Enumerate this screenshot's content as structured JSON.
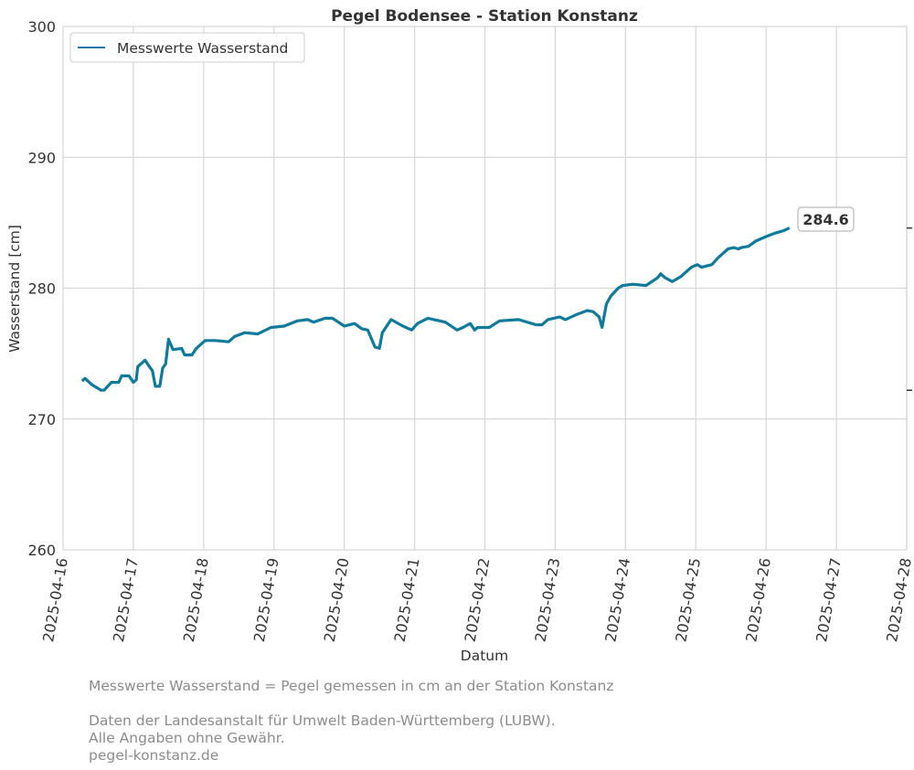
{
  "chart_data": {
    "type": "line",
    "title": "Pegel Bodensee - Station Konstanz",
    "xlabel": "Datum",
    "ylabel": "Wasserstand [cm]",
    "ylim": [
      260,
      300
    ],
    "yticks": [
      260,
      270,
      280,
      290,
      300
    ],
    "xlim": [
      "2025-04-16",
      "2025-04-28"
    ],
    "xticks": [
      "2025-04-16",
      "2025-04-17",
      "2025-04-18",
      "2025-04-19",
      "2025-04-20",
      "2025-04-21",
      "2025-04-22",
      "2025-04-23",
      "2025-04-24",
      "2025-04-25",
      "2025-04-26",
      "2025-04-27",
      "2025-04-28"
    ],
    "grid": true,
    "legend": {
      "placement": "top-left",
      "entries": [
        "Messwerte Wasserstand"
      ]
    },
    "last_value_label": "284.6",
    "right_axis_ticks": [
      284.6,
      272.2
    ],
    "series": [
      {
        "name": "Messwerte Wasserstand",
        "color": "#0f7a9c",
        "points": [
          [
            "2025-04-16T06:30",
            272.9
          ],
          [
            "2025-04-16T07:30",
            273.1
          ],
          [
            "2025-04-16T10:00",
            272.6
          ],
          [
            "2025-04-16T13:00",
            272.2
          ],
          [
            "2025-04-16T14:00",
            272.2
          ],
          [
            "2025-04-16T16:30",
            272.8
          ],
          [
            "2025-04-16T19:00",
            272.8
          ],
          [
            "2025-04-16T20:00",
            273.3
          ],
          [
            "2025-04-16T22:30",
            273.3
          ],
          [
            "2025-04-17T00:00",
            272.8
          ],
          [
            "2025-04-17T01:00",
            273.0
          ],
          [
            "2025-04-17T01:30",
            274.0
          ],
          [
            "2025-04-17T04:00",
            274.5
          ],
          [
            "2025-04-17T05:30",
            274.0
          ],
          [
            "2025-04-17T06:30",
            273.7
          ],
          [
            "2025-04-17T07:30",
            272.5
          ],
          [
            "2025-04-17T09:00",
            272.5
          ],
          [
            "2025-04-17T10:00",
            273.9
          ],
          [
            "2025-04-17T11:00",
            274.2
          ],
          [
            "2025-04-17T12:00",
            276.1
          ],
          [
            "2025-04-17T13:30",
            275.3
          ],
          [
            "2025-04-17T16:30",
            275.4
          ],
          [
            "2025-04-17T17:30",
            274.9
          ],
          [
            "2025-04-17T20:00",
            274.9
          ],
          [
            "2025-04-17T21:30",
            275.4
          ],
          [
            "2025-04-18T00:30",
            276.0
          ],
          [
            "2025-04-18T04:00",
            276.0
          ],
          [
            "2025-04-18T08:30",
            275.9
          ],
          [
            "2025-04-18T10:30",
            276.3
          ],
          [
            "2025-04-18T14:00",
            276.6
          ],
          [
            "2025-04-18T18:30",
            276.5
          ],
          [
            "2025-04-18T23:00",
            277.0
          ],
          [
            "2025-04-19T03:30",
            277.1
          ],
          [
            "2025-04-19T08:00",
            277.5
          ],
          [
            "2025-04-19T11:30",
            277.6
          ],
          [
            "2025-04-19T13:30",
            277.4
          ],
          [
            "2025-04-19T17:30",
            277.7
          ],
          [
            "2025-04-19T20:00",
            277.7
          ],
          [
            "2025-04-20T00:00",
            277.1
          ],
          [
            "2025-04-20T03:30",
            277.3
          ],
          [
            "2025-04-20T06:00",
            276.9
          ],
          [
            "2025-04-20T08:00",
            276.8
          ],
          [
            "2025-04-20T10:30",
            275.5
          ],
          [
            "2025-04-20T12:00",
            275.4
          ],
          [
            "2025-04-20T13:00",
            276.6
          ],
          [
            "2025-04-20T16:00",
            277.6
          ],
          [
            "2025-04-20T20:00",
            277.1
          ],
          [
            "2025-04-20T23:00",
            276.8
          ],
          [
            "2025-04-21T01:00",
            277.3
          ],
          [
            "2025-04-21T04:30",
            277.7
          ],
          [
            "2025-04-21T10:30",
            277.4
          ],
          [
            "2025-04-21T14:30",
            276.8
          ],
          [
            "2025-04-21T16:30",
            277.0
          ],
          [
            "2025-04-21T19:00",
            277.3
          ],
          [
            "2025-04-21T20:30",
            276.8
          ],
          [
            "2025-04-21T21:30",
            277.0
          ],
          [
            "2025-04-22T01:30",
            277.0
          ],
          [
            "2025-04-22T05:00",
            277.5
          ],
          [
            "2025-04-22T11:30",
            277.6
          ],
          [
            "2025-04-22T17:30",
            277.2
          ],
          [
            "2025-04-22T19:30",
            277.2
          ],
          [
            "2025-04-22T21:30",
            277.6
          ],
          [
            "2025-04-23T01:30",
            277.8
          ],
          [
            "2025-04-23T03:30",
            277.6
          ],
          [
            "2025-04-23T07:30",
            278.0
          ],
          [
            "2025-04-23T11:00",
            278.3
          ],
          [
            "2025-04-23T13:00",
            278.2
          ],
          [
            "2025-04-23T15:00",
            277.8
          ],
          [
            "2025-04-23T16:00",
            277.0
          ],
          [
            "2025-04-23T17:30",
            278.8
          ],
          [
            "2025-04-23T19:00",
            279.4
          ],
          [
            "2025-04-23T21:30",
            280.0
          ],
          [
            "2025-04-23T23:00",
            280.2
          ],
          [
            "2025-04-24T02:30",
            280.3
          ],
          [
            "2025-04-24T07:00",
            280.2
          ],
          [
            "2025-04-24T11:00",
            280.8
          ],
          [
            "2025-04-24T12:00",
            281.1
          ],
          [
            "2025-04-24T13:30",
            280.8
          ],
          [
            "2025-04-24T16:00",
            280.5
          ],
          [
            "2025-04-24T19:00",
            280.9
          ],
          [
            "2025-04-24T22:30",
            281.6
          ],
          [
            "2025-04-25T00:30",
            281.8
          ],
          [
            "2025-04-25T02:00",
            281.6
          ],
          [
            "2025-04-25T05:30",
            281.8
          ],
          [
            "2025-04-25T07:30",
            282.3
          ],
          [
            "2025-04-25T11:00",
            283.0
          ],
          [
            "2025-04-25T13:00",
            283.1
          ],
          [
            "2025-04-25T14:30",
            283.0
          ],
          [
            "2025-04-25T15:30",
            283.1
          ],
          [
            "2025-04-25T18:00",
            283.2
          ],
          [
            "2025-04-25T20:30",
            283.6
          ],
          [
            "2025-04-25T23:30",
            283.9
          ],
          [
            "2025-04-26T03:00",
            284.2
          ],
          [
            "2025-04-26T06:00",
            284.4
          ],
          [
            "2025-04-26T08:00",
            284.6
          ]
        ]
      }
    ]
  },
  "footer": {
    "line1": "Messwerte Wasserstand = Pegel gemessen in cm an der Station Konstanz",
    "line2": "Daten der Landesanstalt für Umwelt Baden-Württemberg (LUBW).",
    "line3": "Alle Angaben ohne Gewähr.",
    "line4": "pegel-konstanz.de"
  }
}
